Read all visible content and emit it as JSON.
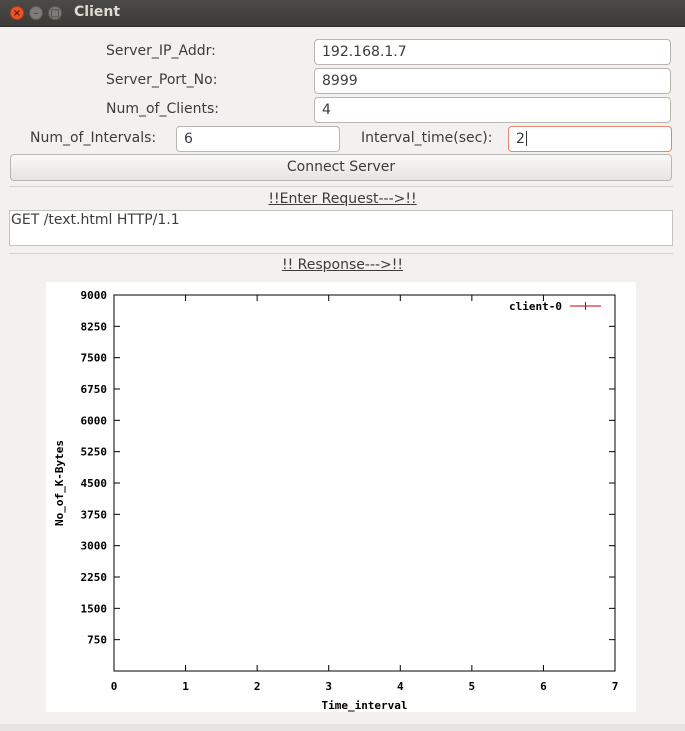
{
  "window": {
    "title": "Client",
    "controls": [
      "close-icon",
      "minimize-icon",
      "maximize-icon"
    ]
  },
  "form": {
    "server_ip_label": "Server_IP_Addr:",
    "server_ip_value": "192.168.1.7",
    "server_port_label": "Server_Port_No:",
    "server_port_value": "8999",
    "num_clients_label": "Num_of_Clients:",
    "num_clients_value": "4",
    "num_intervals_label": "Num_of_Intervals:",
    "num_intervals_value": "6",
    "interval_time_label": "Interval_time(sec):",
    "interval_time_value": "2",
    "connect_button": "Connect Server"
  },
  "request": {
    "heading": "!!Enter Request--->!!",
    "text": "GET /text.html HTTP/1.1"
  },
  "response": {
    "heading": "!! Response--->!!"
  },
  "chart_data": {
    "type": "line",
    "xlabel": "Time_interval",
    "ylabel": "No_of_K-Bytes",
    "xlim": [
      0,
      7
    ],
    "ylim": [
      0,
      9000
    ],
    "x_ticks": [
      "0",
      "1",
      "2",
      "3",
      "4",
      "5",
      "6",
      "7"
    ],
    "y_ticks": [
      "750",
      "1500",
      "2250",
      "3000",
      "3750",
      "4500",
      "5250",
      "6000",
      "6750",
      "7500",
      "8250",
      "9000"
    ],
    "series": [
      {
        "name": "client-0",
        "color": "#cc0000",
        "x": [],
        "y": []
      }
    ],
    "legend": "top-right",
    "grid": false
  }
}
